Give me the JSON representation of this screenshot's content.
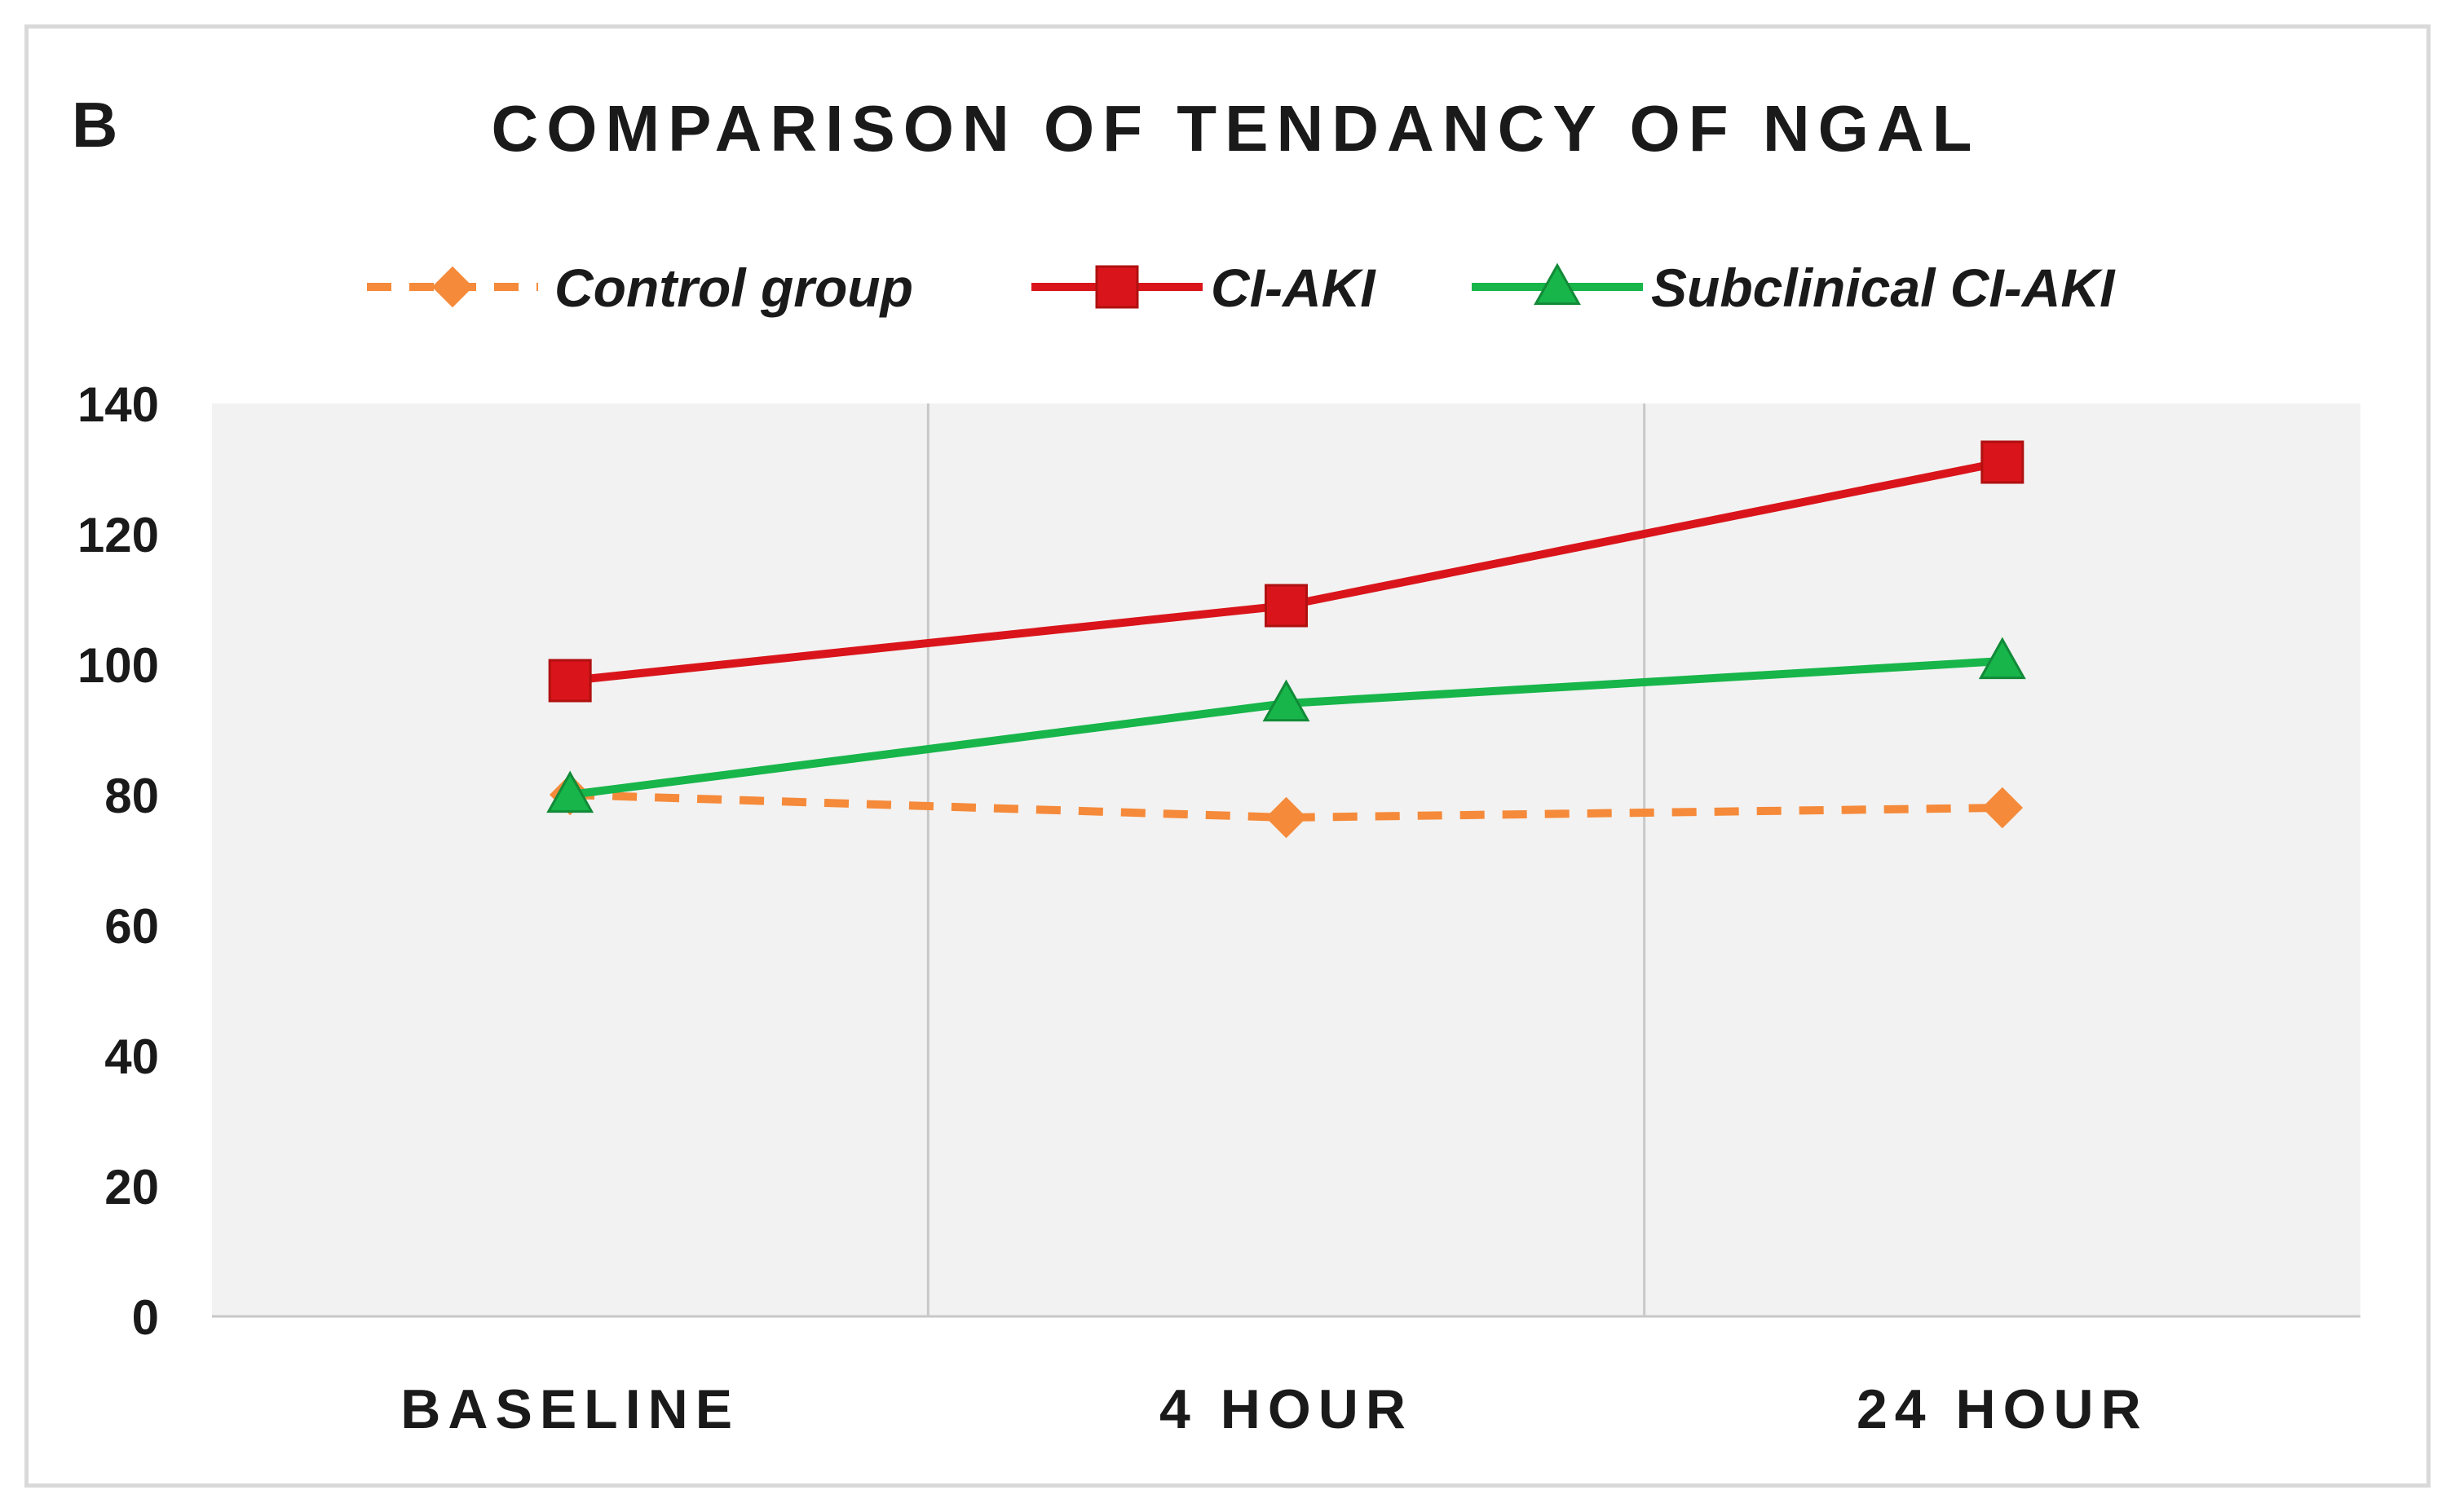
{
  "panel_label": "B",
  "chart_data": {
    "type": "line",
    "title": "COMPARISON OF TENDANCY OF NGAL",
    "categories": [
      "BASELINE",
      "4 HOUR",
      "24 HOUR"
    ],
    "ylim": [
      0,
      140
    ],
    "yticks": [
      0,
      20,
      40,
      60,
      80,
      100,
      120,
      140
    ],
    "xlabel": "",
    "ylabel": "",
    "grid": "vertical",
    "legend": "top",
    "series": [
      {
        "name": "Control group",
        "values": [
          80,
          76.5,
          78
        ],
        "color": "#f58a3a",
        "marker": "diamond",
        "dash": true
      },
      {
        "name": "CI-AKI",
        "values": [
          97.5,
          109,
          131
        ],
        "color": "#d9151b",
        "marker": "square",
        "dash": false
      },
      {
        "name": "Subclinical CI-AKI",
        "values": [
          80,
          94,
          100.5
        ],
        "color": "#17b54a",
        "marker": "triangle",
        "dash": false
      }
    ]
  }
}
